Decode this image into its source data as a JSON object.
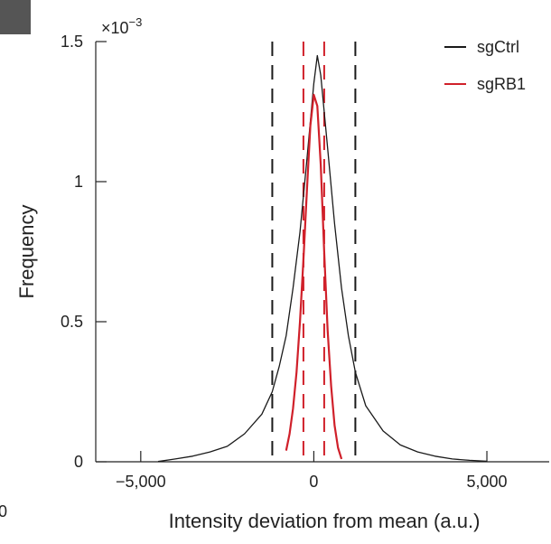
{
  "panel": {
    "fragment_text": "0"
  },
  "chart_data": {
    "type": "line",
    "title": "",
    "xlabel": "Intensity deviation from mean (a.u.)",
    "ylabel": "Frequency",
    "y_multiplier_label": {
      "base": "×10",
      "exponent": "−3"
    },
    "xlim": [
      -6300,
      6800
    ],
    "ylim": [
      0,
      1.5
    ],
    "x_ticks": [
      -5000,
      0,
      5000
    ],
    "x_tick_labels": [
      "−5,000",
      "0",
      "5,000"
    ],
    "y_ticks": [
      0,
      0.5,
      1,
      1.5
    ],
    "y_tick_labels": [
      "0",
      "0.5",
      "1",
      "1.5"
    ],
    "legend": {
      "position": "top-right",
      "entries": [
        "sgCtrl",
        "sgRB1"
      ]
    },
    "series": [
      {
        "name": "sgCtrl",
        "color": "#1a1a1a",
        "x": [
          -4500,
          -4000,
          -3500,
          -3000,
          -2500,
          -2000,
          -1500,
          -1200,
          -1000,
          -800,
          -600,
          -400,
          -200,
          0,
          100,
          200,
          400,
          600,
          800,
          1000,
          1200,
          1500,
          2000,
          2500,
          3000,
          3500,
          4000,
          4500,
          5000
        ],
        "y": [
          0.001,
          0.01,
          0.02,
          0.035,
          0.055,
          0.1,
          0.17,
          0.25,
          0.34,
          0.45,
          0.62,
          0.82,
          1.08,
          1.35,
          1.45,
          1.38,
          1.12,
          0.85,
          0.62,
          0.45,
          0.32,
          0.2,
          0.11,
          0.06,
          0.035,
          0.02,
          0.01,
          0.005,
          0.002
        ]
      },
      {
        "name": "sgRB1",
        "color": "#d0202a",
        "x": [
          -800,
          -700,
          -600,
          -500,
          -400,
          -300,
          -200,
          -100,
          0,
          100,
          200,
          300,
          400,
          500,
          600,
          700,
          800
        ],
        "y": [
          0.04,
          0.1,
          0.19,
          0.32,
          0.5,
          0.72,
          0.97,
          1.2,
          1.31,
          1.27,
          1.06,
          0.75,
          0.47,
          0.27,
          0.13,
          0.05,
          0.01
        ]
      }
    ],
    "vertical_lines": [
      {
        "series": "sgCtrl",
        "x": -1200,
        "color": "#1a1a1a",
        "style": "dashed"
      },
      {
        "series": "sgCtrl",
        "x": 1200,
        "color": "#1a1a1a",
        "style": "dashed"
      },
      {
        "series": "sgRB1",
        "x": -300,
        "color": "#d0202a",
        "style": "dashed"
      },
      {
        "series": "sgRB1",
        "x": 300,
        "color": "#d0202a",
        "style": "dashed"
      }
    ]
  }
}
